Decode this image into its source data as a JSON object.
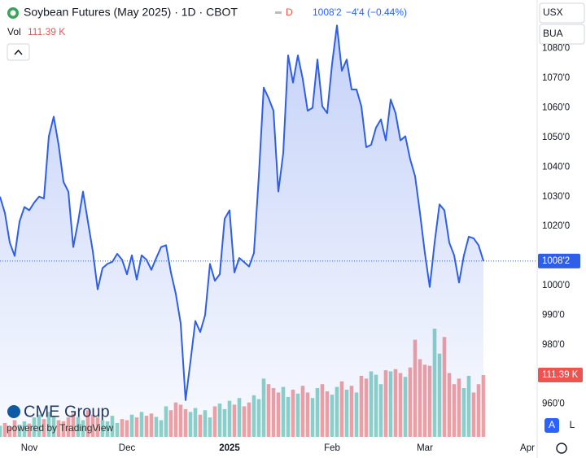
{
  "header": {
    "interval_flag": "D",
    "change": "−4'4 (−0.44%)",
    "vol_label": "Vol"
  },
  "controls": {
    "currency": "USX",
    "unit": "BUA",
    "auto": "A",
    "log": "L"
  },
  "branding": {
    "logo": "CME Group",
    "powered": "powered by TradingView"
  },
  "chart_data": {
    "type": "line",
    "title": "Soybean Futures (May 2025) · 1D · CBOT",
    "categories": [
      null,
      null,
      null,
      null,
      null,
      null,
      "Nov",
      null,
      null,
      null,
      null,
      null,
      null,
      null,
      null,
      null,
      null,
      null,
      null,
      null,
      null,
      null,
      null,
      null,
      null,
      null,
      "Dec",
      null,
      null,
      null,
      null,
      null,
      null,
      null,
      null,
      null,
      null,
      null,
      null,
      null,
      null,
      null,
      null,
      null,
      null,
      null,
      null,
      "2025",
      null,
      null,
      null,
      null,
      null,
      null,
      null,
      null,
      null,
      null,
      null,
      null,
      null,
      null,
      null,
      null,
      null,
      null,
      null,
      null,
      "Feb",
      null,
      null,
      null,
      null,
      null,
      null,
      null,
      null,
      null,
      null,
      null,
      null,
      null,
      null,
      null,
      null,
      null,
      null,
      "Mar",
      null,
      null,
      null,
      null,
      null,
      null,
      null,
      null,
      null,
      null,
      null,
      null,
      null,
      null,
      null,
      null,
      null,
      null,
      null,
      null,
      "Apr"
    ],
    "series": [
      {
        "color": "#2f5ee8",
        "last_label": "1008'2",
        "values": [
          1030,
          1024.5,
          1014.5,
          1010,
          1021.6,
          1026.5,
          1025.4,
          1028,
          1030,
          1029.4,
          1050.4,
          1057,
          1047.5,
          1035,
          1031.7,
          1013,
          1021.6,
          1031.7,
          1021.6,
          1011.6,
          998.7,
          1005.9,
          1007.3,
          1008,
          1010.7,
          1008.7,
          1003.8,
          1010.2,
          1002,
          1010.2,
          1008.7,
          1005.3,
          1009.3,
          1013,
          1013.6,
          1004.4,
          997.2,
          987.2,
          961.3,
          974.3,
          988,
          984.3,
          990,
          1007.3,
          1001.6,
          1003.8,
          1022.5,
          1025.4,
          1004.4,
          1009.3,
          1007.9,
          1006.4,
          1011,
          1036.9,
          1066.8,
          1063.3,
          1059,
          1031.7,
          1044.7,
          1077.7,
          1068.5,
          1077.7,
          1069.7,
          1059,
          1060,
          1076.3,
          1060.5,
          1058.2,
          1074.8,
          1087.8,
          1072.5,
          1076.3,
          1066.2,
          1066.2,
          1060.5,
          1046.7,
          1047.5,
          1053.3,
          1056.1,
          1049,
          1062.8,
          1058.2,
          1049,
          1050.4,
          1042.6,
          1036.9,
          1024.5,
          1011,
          999.5,
          1014.5,
          1027.4,
          1025.4,
          1014.5,
          1010.2,
          1001,
          1010.2,
          1016.5,
          1015.9,
          1013.6,
          1008.25,
          null,
          null,
          null,
          null,
          null,
          null,
          null,
          null,
          null
        ]
      }
    ],
    "volume": {
      "up_color": "#8ed3c8",
      "down_color": "#f2a2a2",
      "label_color": "#ef5350",
      "last_label": "111.39 K",
      "values": [
        20,
        25,
        18,
        30,
        22,
        28,
        24,
        35,
        40,
        32,
        45,
        38,
        30,
        28,
        35,
        42,
        36,
        30,
        48,
        40,
        35,
        30,
        28,
        38,
        25,
        32,
        30,
        40,
        35,
        45,
        38,
        42,
        36,
        30,
        55,
        48,
        62,
        58,
        50,
        45,
        52,
        40,
        48,
        35,
        55,
        60,
        50,
        65,
        58,
        70,
        55,
        62,
        75,
        68,
        105,
        95,
        88,
        80,
        90,
        72,
        85,
        78,
        92,
        80,
        70,
        88,
        95,
        82,
        76,
        90,
        100,
        85,
        92,
        80,
        110,
        105,
        118,
        112,
        95,
        120,
        118,
        122,
        115,
        108,
        125,
        175,
        140,
        130,
        128,
        195,
        150,
        180,
        115,
        95,
        105,
        88,
        110,
        80,
        95,
        111.39,
        null,
        null,
        null,
        null,
        null,
        null,
        null,
        null,
        null
      ]
    },
    "ylim": [
      1096.4,
      948.9
    ],
    "yticks": [
      {
        "value": 960,
        "label": "960'0"
      },
      {
        "value": 980,
        "label": "980'0"
      },
      {
        "value": 990,
        "label": "990'0"
      },
      {
        "value": 1000,
        "label": "1000'0"
      },
      {
        "value": 1020,
        "label": "1020'0"
      },
      {
        "value": 1030,
        "label": "1030'0"
      },
      {
        "value": 1040,
        "label": "1040'0"
      },
      {
        "value": 1050,
        "label": "1050'0"
      },
      {
        "value": 1060,
        "label": "1060'0"
      },
      {
        "value": 1070,
        "label": "1070'0"
      },
      {
        "value": 1080,
        "label": "1080'0"
      }
    ]
  }
}
